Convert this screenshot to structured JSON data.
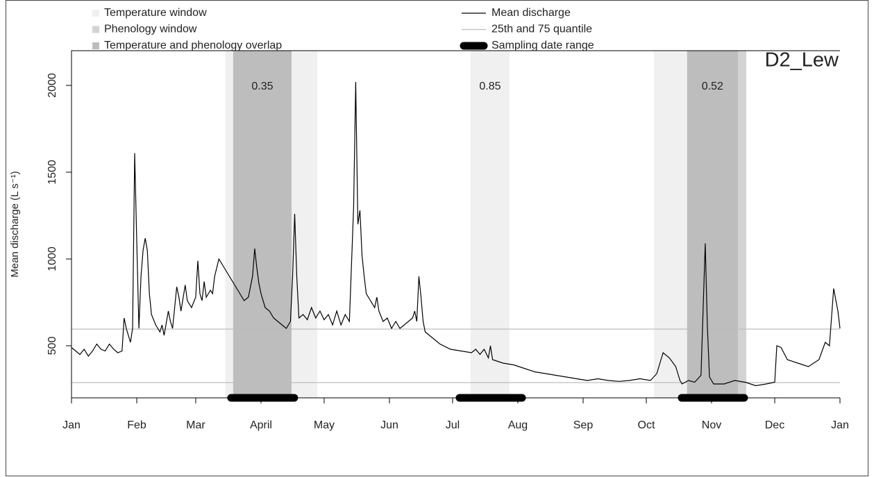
{
  "chart_data": {
    "type": "line",
    "title": "D2_Lew",
    "y_label": "Mean discharge (L s⁻¹)",
    "xlim": [
      0,
      365
    ],
    "ylim": [
      200,
      2200
    ],
    "xticks": [
      {
        "value": 0,
        "label": "Jan"
      },
      {
        "value": 31,
        "label": "Feb"
      },
      {
        "value": 59,
        "label": "Mar"
      },
      {
        "value": 90,
        "label": "April"
      },
      {
        "value": 120,
        "label": "May"
      },
      {
        "value": 151,
        "label": "Jun"
      },
      {
        "value": 181,
        "label": "Jul"
      },
      {
        "value": 212,
        "label": "Aug"
      },
      {
        "value": 243,
        "label": "Sep"
      },
      {
        "value": 273,
        "label": "Oct"
      },
      {
        "value": 304,
        "label": "Nov"
      },
      {
        "value": 334,
        "label": "Dec"
      },
      {
        "value": 365,
        "label": "Jan"
      }
    ],
    "yticks": [
      500,
      1000,
      1500,
      2000
    ],
    "x": [
      0,
      2,
      4,
      6,
      8,
      10,
      12,
      14,
      16,
      18,
      20,
      22,
      24,
      25,
      26,
      27,
      28,
      29,
      30,
      31,
      32,
      33,
      34,
      35,
      36,
      37,
      38,
      40,
      42,
      43,
      44,
      46,
      47,
      48,
      50,
      51,
      52,
      54,
      55,
      57,
      59,
      60,
      61,
      62,
      63,
      64,
      66,
      67,
      68,
      70,
      72,
      74,
      76,
      78,
      80,
      82,
      84,
      86,
      87,
      88,
      89,
      90,
      92,
      94,
      96,
      98,
      100,
      102,
      104,
      105,
      106,
      107,
      108,
      110,
      112,
      114,
      116,
      118,
      120,
      122,
      124,
      126,
      128,
      130,
      132,
      134,
      135,
      136,
      137,
      138,
      139,
      140,
      142,
      144,
      145,
      146,
      148,
      150,
      152,
      154,
      156,
      158,
      160,
      162,
      163,
      164,
      165,
      166,
      167,
      168,
      170,
      175,
      180,
      185,
      190,
      192,
      194,
      196,
      198,
      199,
      200,
      205,
      210,
      215,
      220,
      225,
      230,
      235,
      240,
      245,
      250,
      255,
      260,
      265,
      270,
      275,
      278,
      281,
      284,
      287,
      289,
      290,
      293,
      296,
      299,
      301,
      302,
      303,
      305,
      310,
      315,
      320,
      325,
      330,
      334,
      335,
      337,
      340,
      345,
      350,
      355,
      358,
      360,
      362,
      364,
      365
    ],
    "series": [
      {
        "name": "Mean discharge",
        "color": "#000000",
        "values": [
          490,
          470,
          450,
          480,
          440,
          470,
          510,
          480,
          470,
          510,
          480,
          460,
          470,
          660,
          600,
          560,
          520,
          600,
          1610,
          1100,
          600,
          900,
          1050,
          1120,
          1050,
          800,
          680,
          620,
          580,
          620,
          560,
          700,
          640,
          600,
          840,
          780,
          700,
          850,
          760,
          720,
          780,
          990,
          800,
          760,
          870,
          780,
          820,
          800,
          900,
          1000,
          960,
          920,
          880,
          840,
          800,
          760,
          780,
          900,
          1060,
          950,
          860,
          800,
          720,
          700,
          660,
          640,
          620,
          600,
          640,
          900,
          1260,
          900,
          660,
          680,
          650,
          720,
          660,
          700,
          650,
          680,
          620,
          700,
          620,
          680,
          640,
          1300,
          2020,
          1200,
          1280,
          1020,
          900,
          800,
          760,
          720,
          780,
          700,
          640,
          660,
          600,
          640,
          600,
          620,
          640,
          660,
          700,
          640,
          900,
          780,
          640,
          580,
          560,
          510,
          480,
          470,
          460,
          480,
          450,
          480,
          430,
          500,
          420,
          400,
          390,
          370,
          350,
          340,
          330,
          320,
          310,
          300,
          310,
          300,
          295,
          300,
          310,
          300,
          340,
          460,
          430,
          380,
          300,
          280,
          300,
          290,
          330,
          1090,
          620,
          320,
          280,
          280,
          300,
          290,
          270,
          280,
          290,
          500,
          490,
          420,
          400,
          380,
          420,
          520,
          500,
          830,
          700,
          600
        ]
      }
    ],
    "quantiles": {
      "name": "25th and 75 quantile",
      "color": "#bdbdbd",
      "values": [
        288,
        596
      ]
    },
    "temperature_window": {
      "name": "Temperature window",
      "color": "#f0f0f0",
      "ranges": [
        [
          73,
          116.7
        ],
        [
          189.6,
          208
        ],
        [
          276.6,
          316.5
        ]
      ]
    },
    "phenology_window": {
      "name": "Phenology window",
      "color": "#d3d3d3",
      "ranges": [
        [
          76.8,
          104.5
        ],
        [
          292.4,
          320.5
        ]
      ]
    },
    "overlap": {
      "name": "Temperature and phenology overlap",
      "color": "#bdbdbd"
    },
    "sampling": {
      "name": "Sampling date range",
      "color": "#000000",
      "ranges": [
        [
          75.8,
          105.8
        ],
        [
          184.3,
          214
        ],
        [
          289.8,
          319.5
        ]
      ]
    },
    "window_values": [
      0.35,
      0.85,
      0.52
    ]
  }
}
